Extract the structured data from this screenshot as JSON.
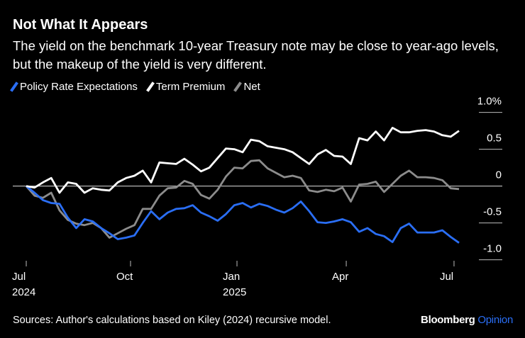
{
  "chart_data": {
    "type": "line",
    "title": "Not What It Appears",
    "subtitle": "The yield on the benchmark 10-year Treasury note may be close to year-ago levels, but the makeup of the yield is very different.",
    "source": "Sources: Author's calculations based on Kiley (2024) recursive model.",
    "brand": "Bloomberg",
    "brand_section": "Opinion",
    "x": [
      0,
      1,
      2,
      3,
      4,
      5,
      6,
      7,
      8,
      9,
      10,
      11,
      12,
      13,
      14,
      15,
      16,
      17,
      18,
      19,
      20,
      21,
      22,
      23,
      24,
      25,
      26,
      27,
      28,
      29,
      30,
      31,
      32,
      33,
      34,
      35,
      36,
      37,
      38,
      39,
      40,
      41,
      42,
      43,
      44,
      45,
      46,
      47,
      48,
      49,
      50,
      51,
      52
    ],
    "xlim": [
      0,
      52
    ],
    "xticks": [
      {
        "value": 0,
        "label": "Jul\n2024"
      },
      {
        "value": 12.53,
        "label": "Oct"
      },
      {
        "value": 25.32,
        "label": "Jan\n2025"
      },
      {
        "value": 38.45,
        "label": "Apr"
      },
      {
        "value": 51.4,
        "label": "Jul"
      }
    ],
    "ylim": [
      -1.1,
      1.15
    ],
    "yticks": [
      {
        "value": 1,
        "label": "1.0%"
      },
      0.5,
      0,
      -0.5,
      {
        "value": -1,
        "label": "-1.0"
      }
    ],
    "series": [
      {
        "name": "Policy Rate Expectations",
        "color": "#2a6ef5",
        "values": [
          0,
          -0.09,
          -0.19,
          -0.23,
          -0.24,
          -0.43,
          -0.57,
          -0.45,
          -0.48,
          -0.57,
          -0.64,
          -0.72,
          -0.7,
          -0.67,
          -0.5,
          -0.34,
          -0.45,
          -0.36,
          -0.31,
          -0.3,
          -0.26,
          -0.36,
          -0.41,
          -0.47,
          -0.38,
          -0.26,
          -0.23,
          -0.29,
          -0.24,
          -0.27,
          -0.32,
          -0.36,
          -0.3,
          -0.21,
          -0.34,
          -0.49,
          -0.5,
          -0.48,
          -0.45,
          -0.49,
          -0.62,
          -0.57,
          -0.65,
          -0.68,
          -0.76,
          -0.57,
          -0.51,
          -0.63,
          -0.63,
          -0.63,
          -0.6,
          -0.69,
          -0.77
        ]
      },
      {
        "name": "Term Premium",
        "color": "#ffffff",
        "values": [
          0,
          -0.02,
          0.05,
          0.11,
          -0.09,
          0.05,
          0.03,
          -0.09,
          -0.03,
          -0.05,
          -0.06,
          0.05,
          0.11,
          0.14,
          0.21,
          0.05,
          0.32,
          0.31,
          0.3,
          0.37,
          0.29,
          0.2,
          0.25,
          0.38,
          0.51,
          0.5,
          0.46,
          0.63,
          0.61,
          0.54,
          0.52,
          0.5,
          0.46,
          0.38,
          0.3,
          0.43,
          0.49,
          0.41,
          0.4,
          0.3,
          0.65,
          0.62,
          0.74,
          0.62,
          0.79,
          0.73,
          0.73,
          0.75,
          0.76,
          0.74,
          0.69,
          0.67,
          0.75
        ]
      },
      {
        "name": "Net",
        "color": "#8c8c8c",
        "values": [
          0,
          -0.13,
          -0.16,
          -0.09,
          -0.33,
          -0.46,
          -0.51,
          -0.53,
          -0.5,
          -0.57,
          -0.7,
          -0.64,
          -0.58,
          -0.53,
          -0.31,
          -0.31,
          -0.13,
          -0.03,
          -0.02,
          0.07,
          0.03,
          -0.12,
          -0.17,
          -0.05,
          0.13,
          0.25,
          0.24,
          0.34,
          0.35,
          0.24,
          0.18,
          0.12,
          0.14,
          0.11,
          -0.06,
          -0.08,
          -0.05,
          -0.07,
          -0.02,
          -0.21,
          0.02,
          0.03,
          0.06,
          -0.08,
          0.03,
          0.14,
          0.21,
          0.12,
          0.12,
          0.11,
          0.08,
          -0.03,
          -0.04
        ]
      }
    ]
  }
}
